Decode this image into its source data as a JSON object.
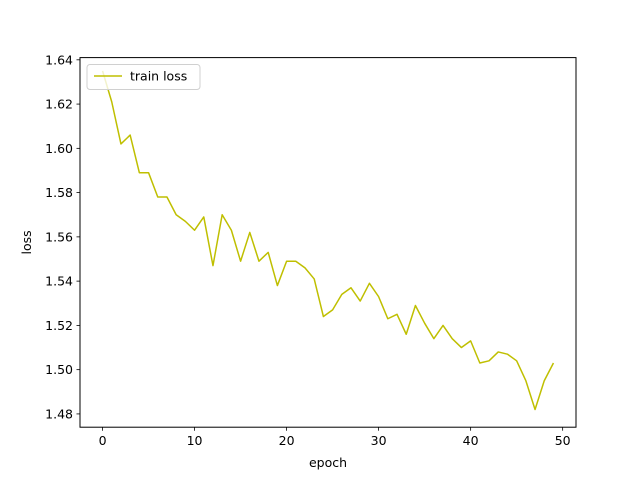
{
  "chart_data": {
    "type": "line",
    "title": "",
    "xlabel": "epoch",
    "ylabel": "loss",
    "xlim": [
      -2.45,
      51.45
    ],
    "ylim": [
      1.474,
      1.641
    ],
    "xticks": [
      0,
      10,
      20,
      30,
      40,
      50
    ],
    "xtick_labels": [
      "0",
      "10",
      "20",
      "30",
      "40",
      "50"
    ],
    "yticks": [
      1.48,
      1.5,
      1.52,
      1.54,
      1.56,
      1.58,
      1.6,
      1.62,
      1.64
    ],
    "ytick_labels": [
      "1.48",
      "1.50",
      "1.52",
      "1.54",
      "1.56",
      "1.58",
      "1.60",
      "1.62",
      "1.64"
    ],
    "grid": false,
    "legend_position": "top-left",
    "series": [
      {
        "name": "train loss",
        "color": "#bfbf00",
        "x": [
          0,
          1,
          2,
          3,
          4,
          5,
          6,
          7,
          8,
          9,
          10,
          11,
          12,
          13,
          14,
          15,
          16,
          17,
          18,
          19,
          20,
          21,
          22,
          23,
          24,
          25,
          26,
          27,
          28,
          29,
          30,
          31,
          32,
          33,
          34,
          35,
          36,
          37,
          38,
          39,
          40,
          41,
          42,
          43,
          44,
          45,
          46,
          47,
          48,
          49
        ],
        "y": [
          1.635,
          1.621,
          1.602,
          1.606,
          1.589,
          1.589,
          1.578,
          1.578,
          1.57,
          1.567,
          1.563,
          1.569,
          1.547,
          1.57,
          1.563,
          1.549,
          1.562,
          1.549,
          1.553,
          1.538,
          1.549,
          1.549,
          1.546,
          1.541,
          1.524,
          1.527,
          1.534,
          1.537,
          1.531,
          1.539,
          1.533,
          1.523,
          1.525,
          1.516,
          1.529,
          1.521,
          1.514,
          1.52,
          1.514,
          1.51,
          1.513,
          1.503,
          1.504,
          1.508,
          1.507,
          1.504,
          1.495,
          1.482,
          1.495,
          1.503
        ]
      }
    ]
  }
}
